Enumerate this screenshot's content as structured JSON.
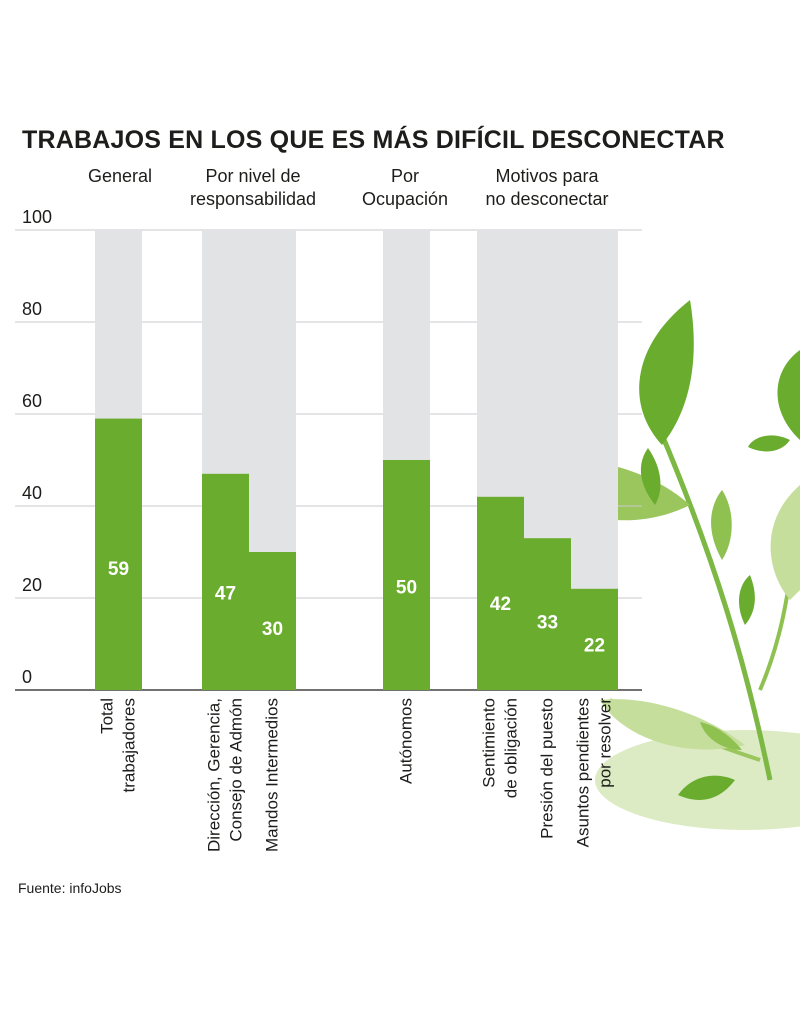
{
  "title": "TRABAJOS EN LOS QUE ES MÁS DIFÍCIL DESCONECTAR",
  "source": "Fuente: infoJobs",
  "colors": {
    "bar": "#6aac2e",
    "background_bar": "#e2e3e5",
    "grid": "#c8c9cc",
    "text": "#1d1d1b",
    "leaf_dark": "#6aac2e",
    "leaf_light": "#a9cf6a",
    "leaf_pale": "#dcebc4"
  },
  "decoration": "leaf-illustration",
  "chart_data": {
    "type": "bar",
    "title": "TRABAJOS EN LOS QUE ES MÁS DIFÍCIL DESCONECTAR",
    "ylim": [
      0,
      100
    ],
    "yticks": [
      0,
      20,
      40,
      60,
      80,
      100
    ],
    "grid": true,
    "groups": [
      {
        "label": [
          "General"
        ],
        "categories": [
          [
            "Total",
            "trabajadores"
          ]
        ],
        "values": [
          59
        ]
      },
      {
        "label": [
          "Por nivel de",
          "responsabilidad"
        ],
        "categories": [
          [
            "Dirección, Gerencia,",
            "Consejo de Admón"
          ],
          [
            "Mandos Intermedios"
          ]
        ],
        "values": [
          47,
          30
        ]
      },
      {
        "label": [
          "Por",
          "Ocupación"
        ],
        "categories": [
          [
            "Autónomos"
          ]
        ],
        "values": [
          50
        ]
      },
      {
        "label": [
          "Motivos para",
          "no desconectar"
        ],
        "categories": [
          [
            "Sentimiento",
            "de obligación"
          ],
          [
            "Presión del puesto"
          ],
          [
            "Asuntos pendientes",
            "por resolver"
          ]
        ],
        "values": [
          42,
          33,
          22
        ]
      }
    ]
  }
}
